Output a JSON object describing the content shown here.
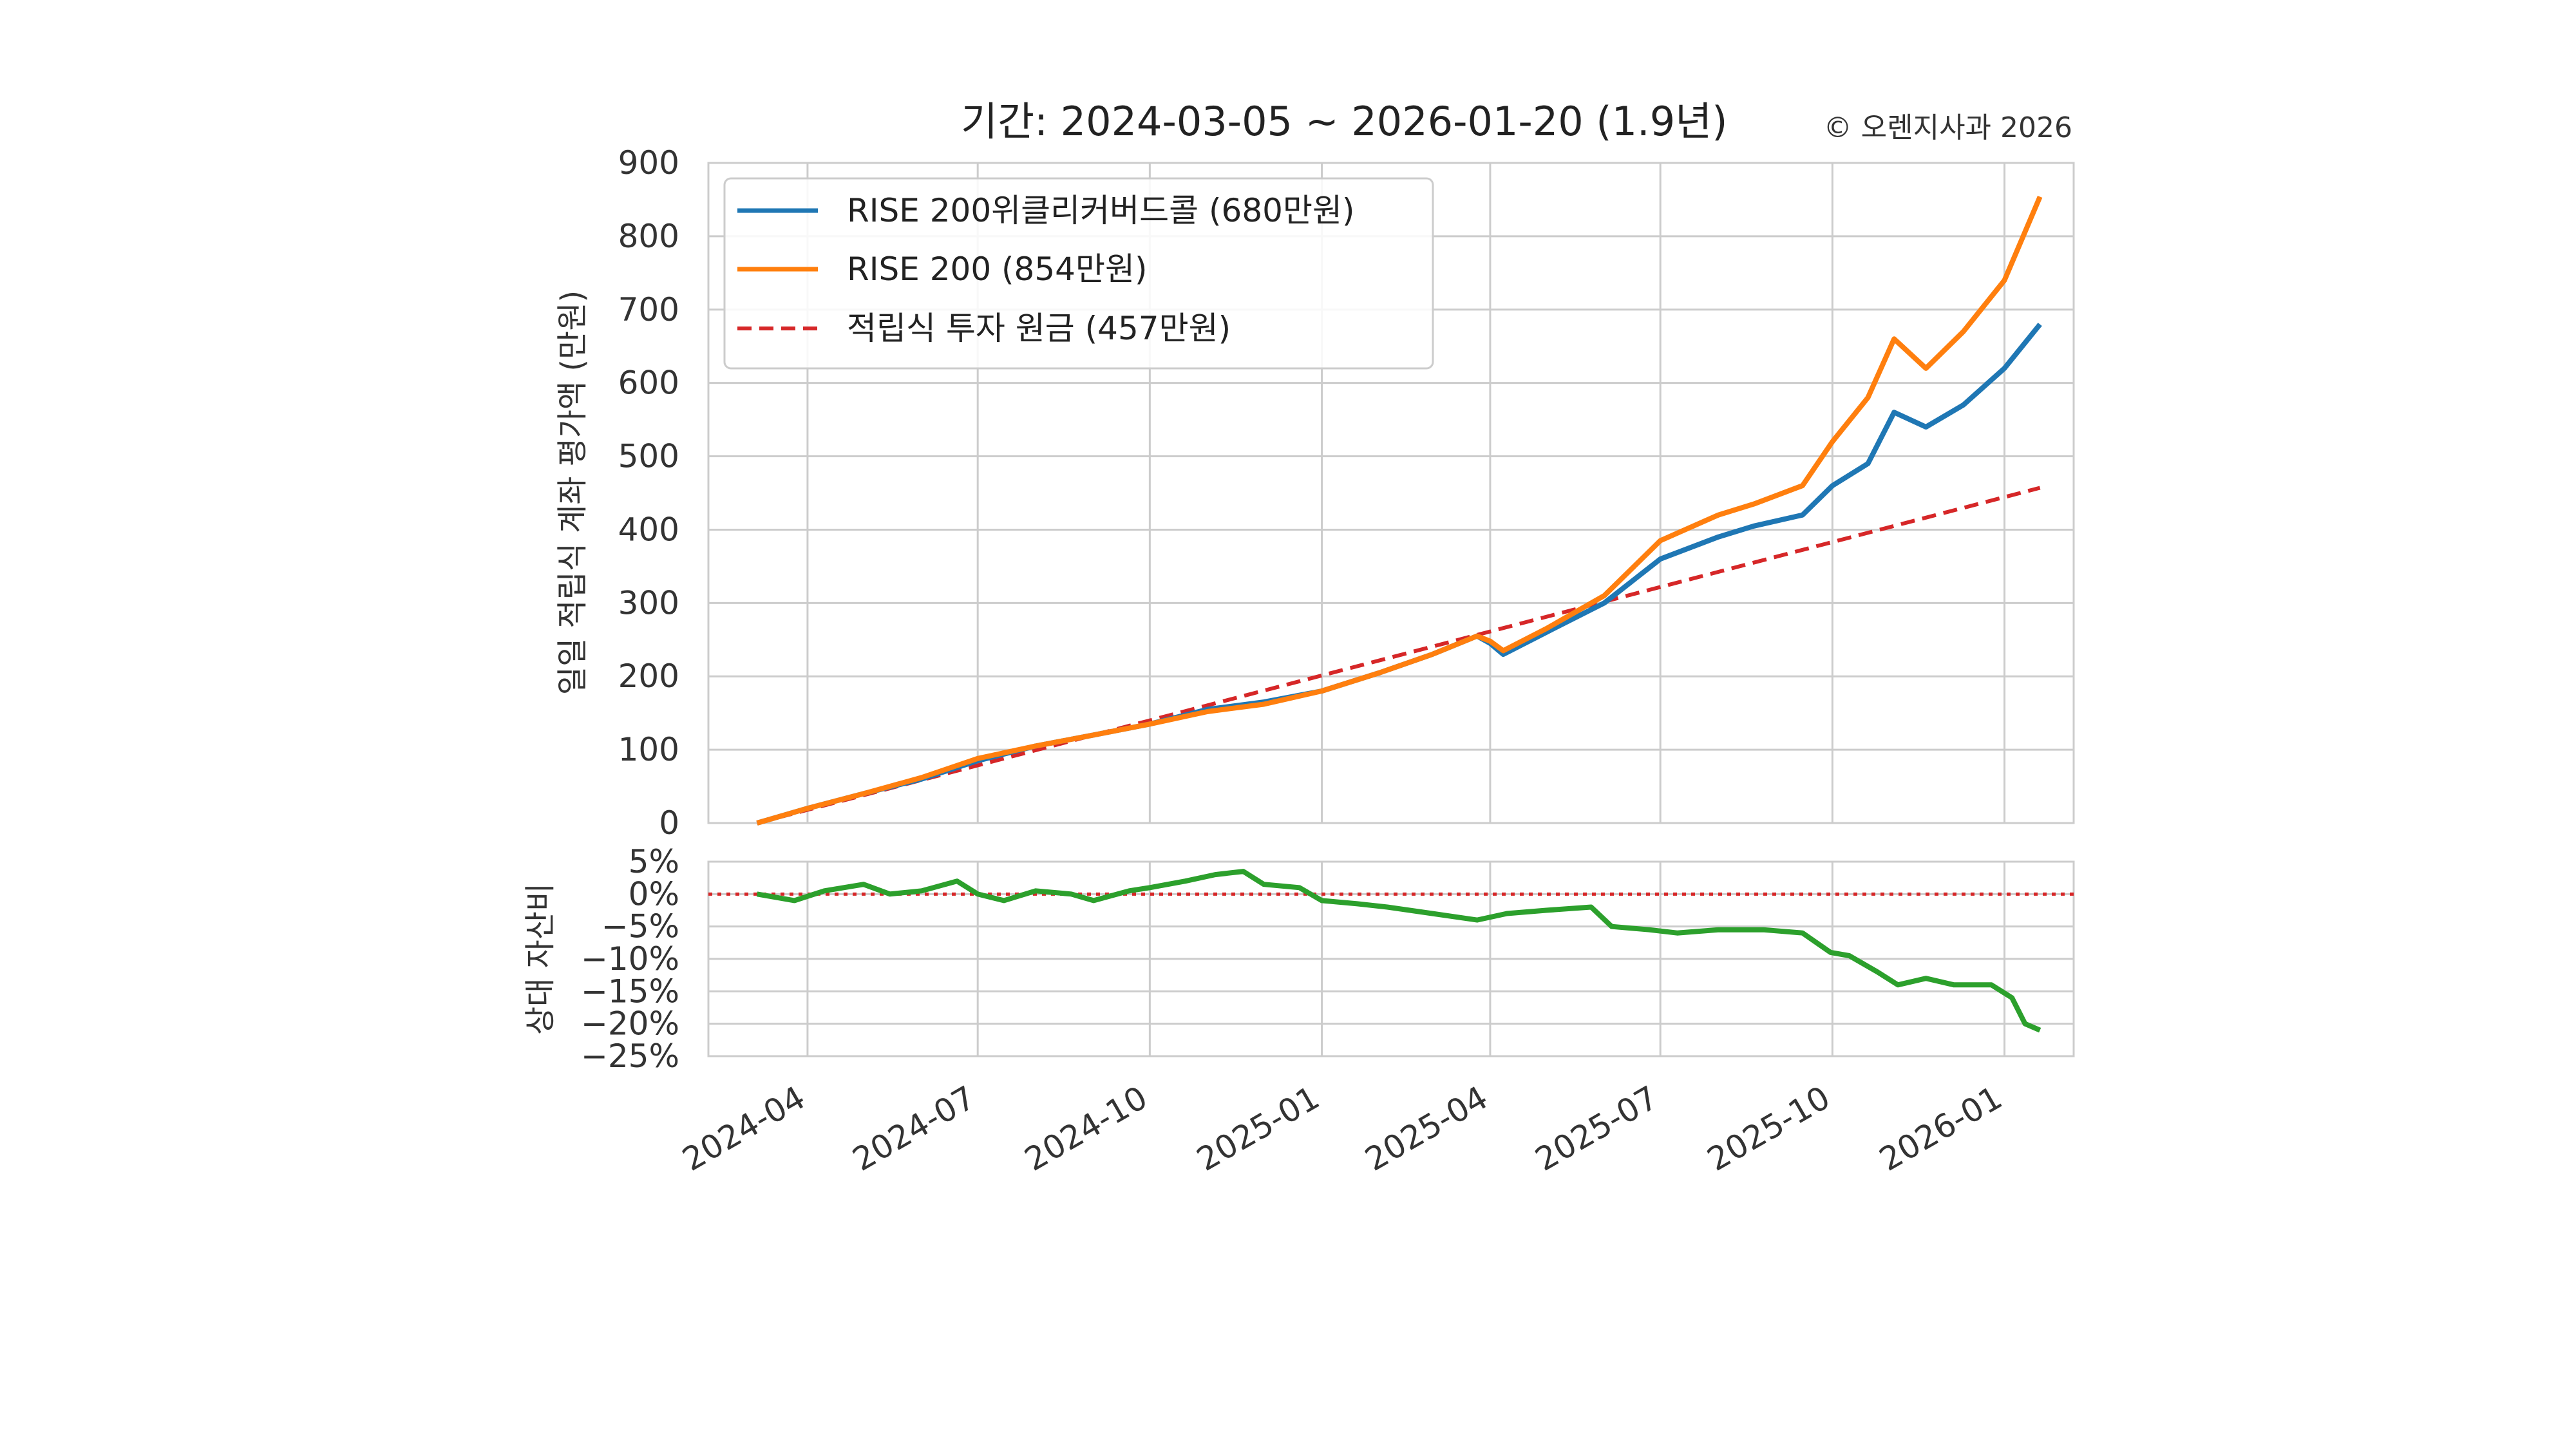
{
  "title": "기간: 2024-03-05 ~ 2026-01-20 (1.9년)",
  "copyright": "© 오렌지사과 2026",
  "chart_data": [
    {
      "type": "line",
      "ylabel": "일일 적립식 계좌 평가액 (만원)",
      "xlabel": "",
      "ylim": [
        0,
        900
      ],
      "y_ticks": [
        "0",
        "100",
        "200",
        "300",
        "400",
        "500",
        "600",
        "700",
        "800",
        "900"
      ],
      "grid": true,
      "legend_position": "top-left",
      "series": [
        {
          "name": "RISE 200위클리커버드콜 (680만원)",
          "color": "#1f77b4",
          "style": "solid",
          "x": [
            "2024-03-05",
            "2024-04-01",
            "2024-05-01",
            "2024-06-01",
            "2024-07-01",
            "2024-08-01",
            "2024-09-01",
            "2024-10-01",
            "2024-11-01",
            "2024-12-01",
            "2025-01-01",
            "2025-02-01",
            "2025-03-01",
            "2025-03-25",
            "2025-04-01",
            "2025-04-08",
            "2025-05-01",
            "2025-06-01",
            "2025-07-01",
            "2025-08-01",
            "2025-08-20",
            "2025-09-15",
            "2025-10-01",
            "2025-10-20",
            "2025-11-03",
            "2025-11-20",
            "2025-12-10",
            "2026-01-01",
            "2026-01-20"
          ],
          "y": [
            0,
            20,
            40,
            60,
            85,
            105,
            120,
            135,
            155,
            165,
            180,
            205,
            230,
            255,
            245,
            230,
            260,
            300,
            360,
            390,
            405,
            420,
            460,
            490,
            560,
            540,
            570,
            620,
            680
          ]
        },
        {
          "name": "RISE 200 (854만원)",
          "color": "#ff7f0e",
          "style": "solid",
          "x": [
            "2024-03-05",
            "2024-04-01",
            "2024-05-01",
            "2024-06-01",
            "2024-07-01",
            "2024-08-01",
            "2024-09-01",
            "2024-10-01",
            "2024-11-01",
            "2024-12-01",
            "2025-01-01",
            "2025-02-01",
            "2025-03-01",
            "2025-03-25",
            "2025-04-01",
            "2025-04-08",
            "2025-05-01",
            "2025-06-01",
            "2025-07-01",
            "2025-08-01",
            "2025-08-20",
            "2025-09-15",
            "2025-10-01",
            "2025-10-20",
            "2025-11-03",
            "2025-11-20",
            "2025-12-10",
            "2026-01-01",
            "2026-01-20"
          ],
          "y": [
            0,
            20,
            40,
            62,
            88,
            105,
            120,
            135,
            152,
            162,
            180,
            205,
            230,
            255,
            248,
            235,
            265,
            310,
            385,
            420,
            435,
            460,
            520,
            580,
            660,
            620,
            670,
            740,
            854
          ]
        },
        {
          "name": "적립식 투자 원금 (457만원)",
          "color": "#d62728",
          "style": "dashed",
          "x": [
            "2024-03-05",
            "2026-01-20"
          ],
          "y": [
            0,
            457
          ]
        }
      ]
    },
    {
      "type": "line",
      "ylabel": "상대 자산비",
      "xlabel": "",
      "ylim": [
        -25,
        5
      ],
      "y_ticks": [
        "5%",
        "0%",
        "−5%",
        "−10%",
        "−15%",
        "−20%",
        "−25%"
      ],
      "x_ticks": [
        "2024-04",
        "2024-07",
        "2024-10",
        "2025-01",
        "2025-04",
        "2025-07",
        "2025-10",
        "2026-01"
      ],
      "grid": true,
      "reference_line": {
        "y": 0,
        "color": "#d62728",
        "style": "dotted"
      },
      "series": [
        {
          "color": "#2ca02c",
          "x": [
            "2024-03-05",
            "2024-03-25",
            "2024-04-10",
            "2024-05-01",
            "2024-05-15",
            "2024-06-01",
            "2024-06-20",
            "2024-07-01",
            "2024-07-15",
            "2024-08-01",
            "2024-08-20",
            "2024-09-01",
            "2024-09-20",
            "2024-10-01",
            "2024-10-20",
            "2024-11-05",
            "2024-11-20",
            "2024-12-01",
            "2024-12-20",
            "2025-01-01",
            "2025-01-20",
            "2025-02-05",
            "2025-03-01",
            "2025-03-25",
            "2025-04-10",
            "2025-05-01",
            "2025-05-25",
            "2025-06-05",
            "2025-06-25",
            "2025-07-10",
            "2025-08-01",
            "2025-08-25",
            "2025-09-15",
            "2025-09-30",
            "2025-10-10",
            "2025-10-25",
            "2025-11-05",
            "2025-11-20",
            "2025-12-05",
            "2025-12-25",
            "2026-01-05",
            "2026-01-12",
            "2026-01-20"
          ],
          "y": [
            0,
            -1,
            0.5,
            1.5,
            0,
            0.5,
            2,
            0,
            -1,
            0.5,
            0,
            -1,
            0.5,
            1,
            2,
            3,
            3.5,
            1.5,
            1,
            -1,
            -1.5,
            -2,
            -3,
            -4,
            -3,
            -2.5,
            -2,
            -5,
            -5.5,
            -6,
            -5.5,
            -5.5,
            -6,
            -9,
            -9.5,
            -12,
            -14,
            -13,
            -14,
            -14,
            -16,
            -20,
            -21
          ]
        }
      ]
    }
  ]
}
